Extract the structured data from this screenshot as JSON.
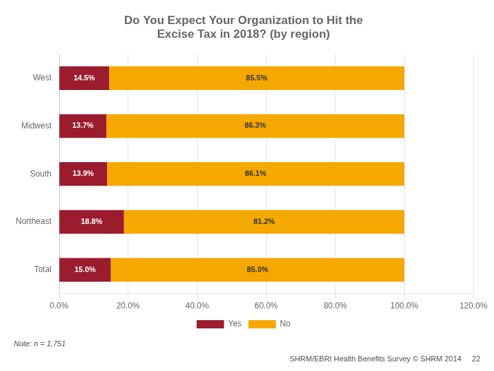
{
  "chart_data": {
    "type": "bar",
    "orientation": "horizontal",
    "stacked": true,
    "title": [
      "Do You Expect Your Organization to Hit the",
      "Excise Tax in 2018? (by region)"
    ],
    "categories": [
      "West",
      "Midwest",
      "South",
      "Northeast",
      "Total"
    ],
    "series": [
      {
        "name": "Yes",
        "color": "#9B1C2E",
        "values": [
          14.5,
          13.7,
          13.9,
          18.8,
          15.0
        ],
        "value_labels": [
          "14.5%",
          "13.7%",
          "13.9%",
          "18.8%",
          "15.0%"
        ]
      },
      {
        "name": "No",
        "color": "#F5A800",
        "values": [
          85.5,
          86.3,
          86.1,
          81.2,
          85.0
        ],
        "value_labels": [
          "85.5%",
          "86.3%",
          "86.1%",
          "81.2%",
          "85.0%"
        ]
      }
    ],
    "xlim": [
      0,
      120
    ],
    "xticks": [
      {
        "value": 0,
        "label": "0.0%"
      },
      {
        "value": 20,
        "label": "20.0%"
      },
      {
        "value": 40,
        "label": "40.0%"
      },
      {
        "value": 60,
        "label": "60.0%"
      },
      {
        "value": 80,
        "label": "80.0%"
      },
      {
        "value": 100,
        "label": "100.0%"
      },
      {
        "value": 120,
        "label": "120.0%"
      }
    ],
    "grid": true,
    "legend": "bottom",
    "data_labels": true,
    "annotations": [
      "Note: n = 1,751",
      "SHRM/EBRI Health Benefits Survey © SHRM 2014     22"
    ]
  }
}
